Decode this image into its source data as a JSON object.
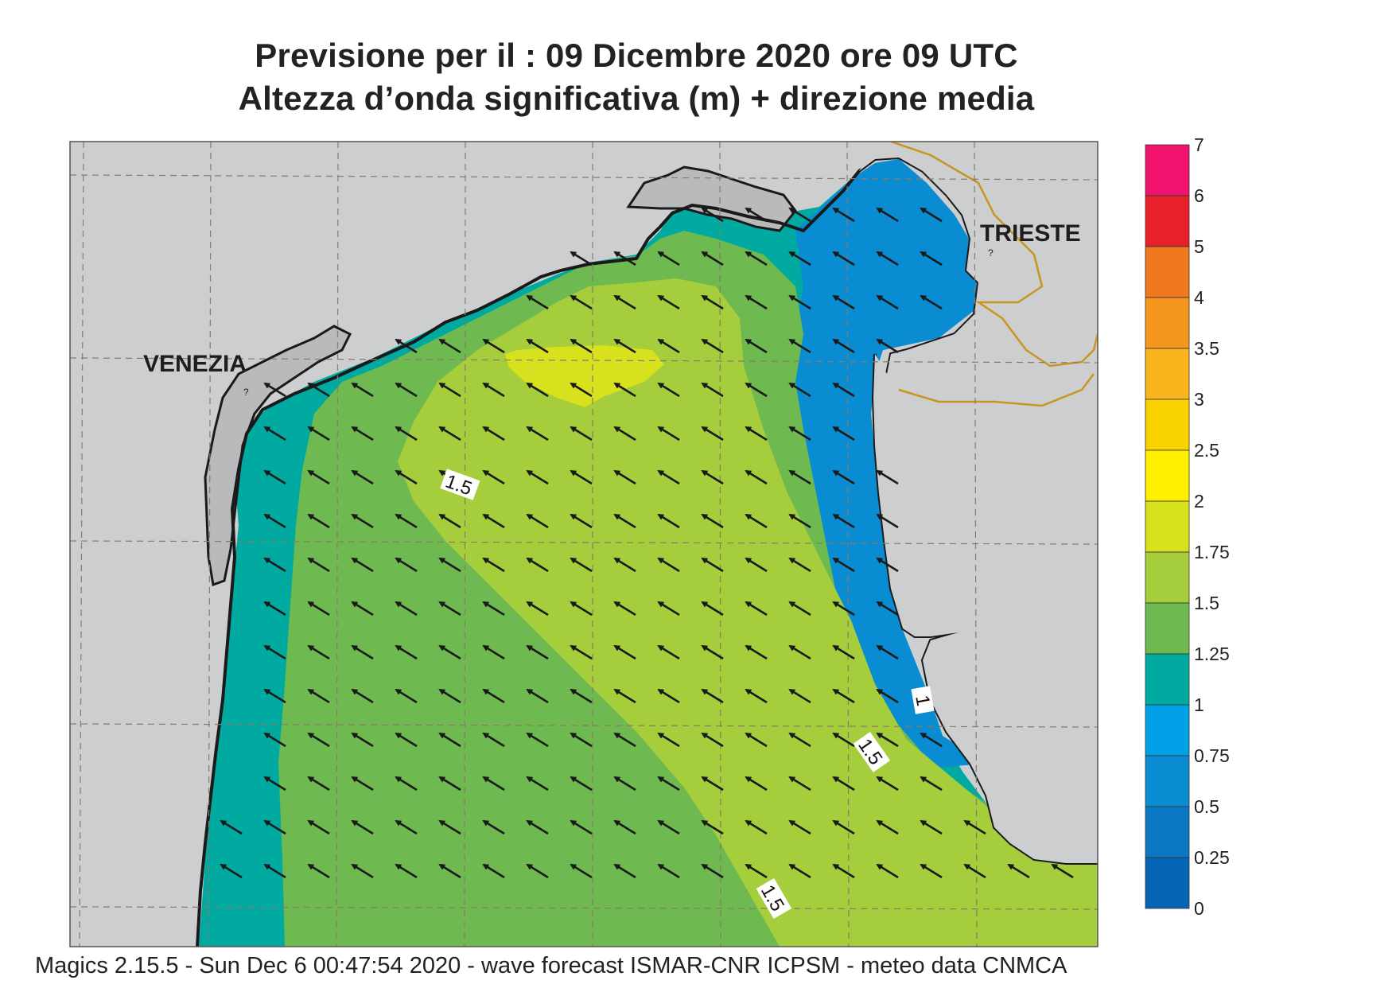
{
  "title_line1": "Previsione per il  :  09 Dicembre  2020   ore 09 UTC",
  "title_line2": "Altezza d’onda significativa (m) + direzione media",
  "footer": "Magics 2.15.5 - Sun Dec  6 00:47:54 2020 - wave forecast  ISMAR-CNR  ICPSM - meteo data   CNMCA",
  "cities": [
    {
      "name": "VENEZIA",
      "marker": "?"
    },
    {
      "name": "TRIESTE",
      "marker": "?"
    }
  ],
  "contour_labels": [
    "1.5",
    "1",
    "1.5",
    "1.5"
  ],
  "legend": {
    "ticks": [
      "7",
      "6",
      "5",
      "4",
      "3.5",
      "3",
      "2.5",
      "2",
      "1.75",
      "1.5",
      "1.25",
      "1",
      "0.75",
      "0.5",
      "0.25",
      "0"
    ],
    "colors": [
      "#f0146e",
      "#e8202a",
      "#f0781e",
      "#f5961e",
      "#fab41e",
      "#fad200",
      "#fff000",
      "#d7e11e",
      "#a5cd3c",
      "#6eb950",
      "#00aaa0",
      "#00a0e6",
      "#0a8cd2",
      "#0a78c3",
      "#0564b4"
    ]
  },
  "colors": {
    "land": "#cdcecf",
    "sea_green": "#6eb950",
    "sea_lime": "#a5cd3c",
    "sea_yellow": "#d7e11e",
    "sea_teal": "#00aaa0",
    "sea_blue": "#0a8cd2",
    "border": "#c8961e"
  },
  "wave_direction": "from south-east (arrows pointing north-west)"
}
